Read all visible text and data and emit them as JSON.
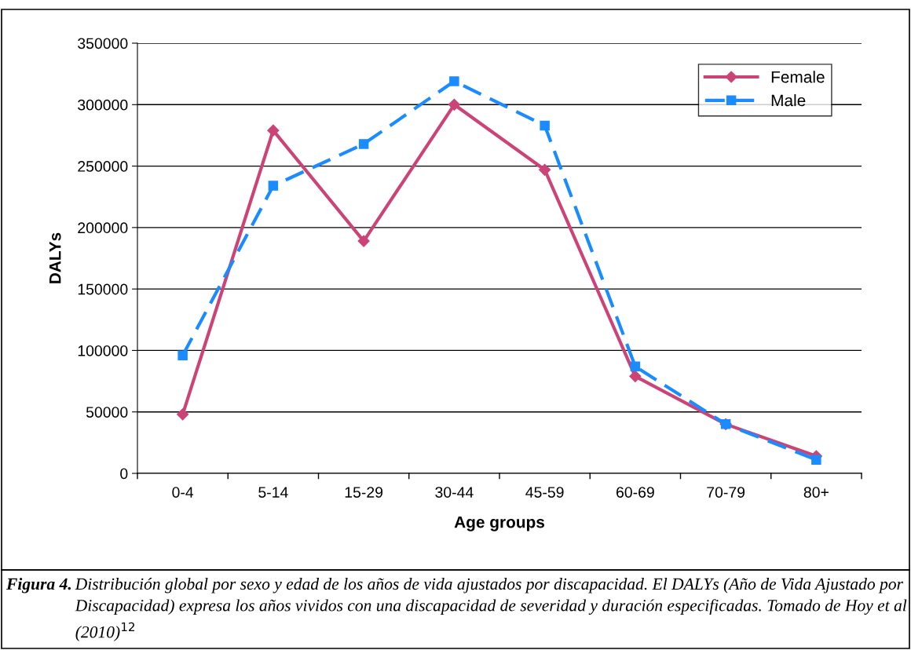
{
  "chart_data": {
    "type": "line",
    "xlabel": "Age groups",
    "ylabel": "DALYs",
    "categories": [
      "0-4",
      "5-14",
      "15-29",
      "30-44",
      "45-59",
      "60-69",
      "70-79",
      "80+"
    ],
    "series": [
      {
        "name": "Female",
        "color": "#cc4477",
        "marker": "diamond",
        "line_style": "solid",
        "values": [
          48000,
          279000,
          189000,
          300000,
          247000,
          79000,
          40000,
          14000
        ]
      },
      {
        "name": "Male",
        "color": "#1a8cff",
        "marker": "square",
        "line_style": "dashed",
        "values": [
          96000,
          234000,
          268000,
          319000,
          283000,
          87000,
          40000,
          11000
        ]
      }
    ],
    "ylim": [
      0,
      350000
    ],
    "yticks": [
      0,
      50000,
      100000,
      150000,
      200000,
      250000,
      300000,
      350000
    ],
    "grid": "y",
    "legend": "top right",
    "annotations": [
      "Figura 4.",
      "Distribución global por sexo y edad de los años de vida ajustados por discapacidad. El DALYs (Año de Vida Ajustado por Discapacidad) expresa los años vividos con una discapacidad de severidad y duración especificadas. Tomado de Hoy et al (2010)$^{12}$"
    ]
  }
}
